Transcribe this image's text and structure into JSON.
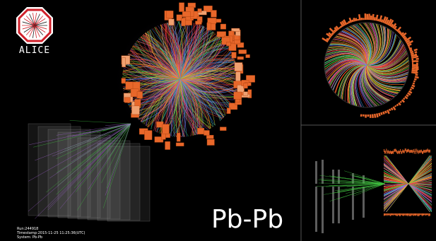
{
  "logo": {
    "label": "ALICE"
  },
  "collision": {
    "label": "Pb-Pb"
  },
  "event_info": {
    "run": "Run:244918",
    "timestamp": "Timestamp:2015-11-25 11:25:36(UTC)",
    "system": "System: Pb-Pb"
  }
}
